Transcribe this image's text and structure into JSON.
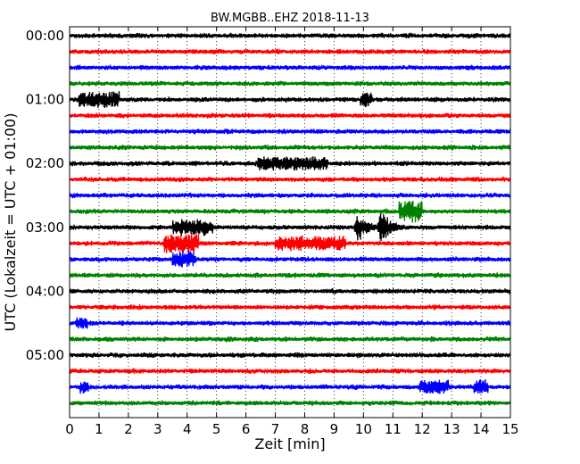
{
  "chart_data": {
    "type": "line",
    "title": "BW.MGBB..EHZ 2018-11-13",
    "xlabel": "Zeit  [min]",
    "ylabel": "UTC (Lokalzeit = UTC + 01:00)",
    "xlim": [
      0,
      15
    ],
    "xticks": [
      "0",
      "1",
      "2",
      "3",
      "4",
      "5",
      "6",
      "7",
      "8",
      "9",
      "10",
      "11",
      "12",
      "13",
      "14",
      "15"
    ],
    "yticks": [
      "00:00",
      "01:00",
      "02:00",
      "03:00",
      "04:00",
      "05:00"
    ],
    "rows_per_hour": 4,
    "row_count": 24,
    "grid": true,
    "trace_colors": [
      "#000000",
      "#ff0000",
      "#0000ff",
      "#008000"
    ],
    "events": [
      {
        "row": 12,
        "x": 9.8,
        "amplitude": 1.0
      },
      {
        "row": 12,
        "x": 10.6,
        "amplitude": 1.2
      }
    ],
    "bursts": [
      {
        "row": 4,
        "x": 1.0,
        "width": 1.4,
        "amplitude": 0.55
      },
      {
        "row": 4,
        "x": 10.1,
        "width": 0.4,
        "amplitude": 0.5
      },
      {
        "row": 8,
        "x": 7.6,
        "width": 2.4,
        "amplitude": 0.5
      },
      {
        "row": 11,
        "x": 11.6,
        "width": 0.8,
        "amplitude": 0.75
      },
      {
        "row": 12,
        "x": 4.2,
        "width": 1.4,
        "amplitude": 0.55
      },
      {
        "row": 13,
        "x": 3.8,
        "width": 1.2,
        "amplitude": 0.65
      },
      {
        "row": 13,
        "x": 8.2,
        "width": 2.4,
        "amplitude": 0.5
      },
      {
        "row": 14,
        "x": 3.9,
        "width": 0.8,
        "amplitude": 0.55
      },
      {
        "row": 18,
        "x": 0.4,
        "width": 0.4,
        "amplitude": 0.45
      },
      {
        "row": 22,
        "x": 0.5,
        "width": 0.3,
        "amplitude": 0.5
      },
      {
        "row": 22,
        "x": 12.4,
        "width": 1.0,
        "amplitude": 0.5
      },
      {
        "row": 22,
        "x": 14.0,
        "width": 0.5,
        "amplitude": 0.5
      }
    ]
  }
}
